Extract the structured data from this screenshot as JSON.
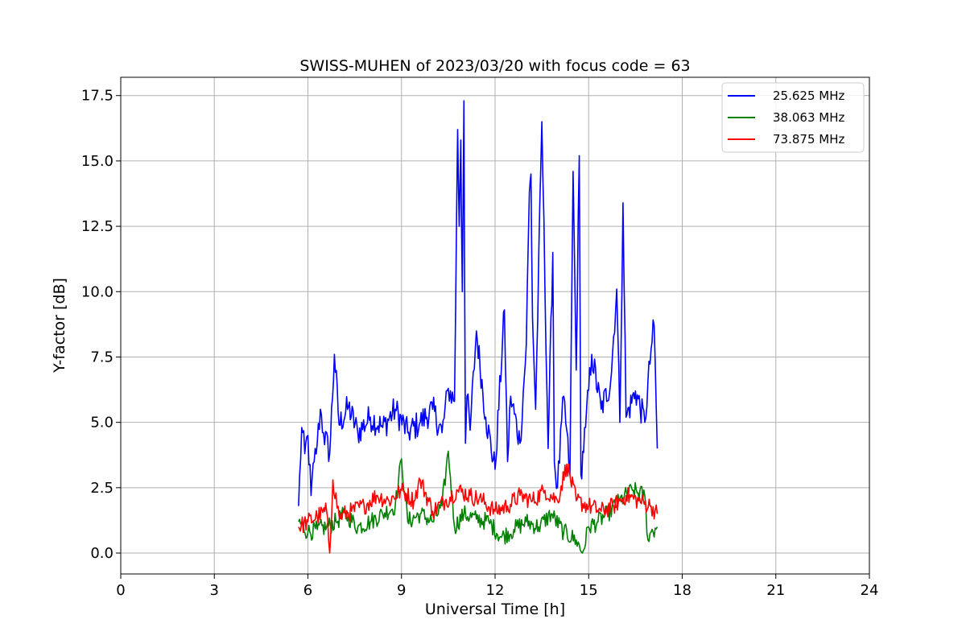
{
  "chart_data": {
    "type": "line",
    "title": "SWISS-MUHEN of 2023/03/20 with focus code = 63",
    "xlabel": "Universal Time [h]",
    "ylabel": "Y-factor [dB]",
    "xlim": [
      0,
      24
    ],
    "ylim": [
      -0.8,
      18.2
    ],
    "xticks": [
      "0",
      "3",
      "6",
      "9",
      "12",
      "15",
      "18",
      "21",
      "24"
    ],
    "yticks": [
      "0.0",
      "2.5",
      "5.0",
      "7.5",
      "10.0",
      "12.5",
      "15.0",
      "17.5"
    ],
    "grid": true,
    "legend_position": "top-right",
    "series": [
      {
        "name": "25.625 MHz",
        "color": "#0000ff",
        "x": [
          5.7,
          5.8,
          5.9,
          6.0,
          6.1,
          6.2,
          6.3,
          6.4,
          6.5,
          6.7,
          6.85,
          7.0,
          7.3,
          7.6,
          8.0,
          8.4,
          8.8,
          9.2,
          9.6,
          10.0,
          10.3,
          10.5,
          10.7,
          10.8,
          10.85,
          10.9,
          10.95,
          11.0,
          11.05,
          11.1,
          11.2,
          11.4,
          11.7,
          12.0,
          12.3,
          12.4,
          12.5,
          12.8,
          13.0,
          13.1,
          13.15,
          13.2,
          13.3,
          13.5,
          13.7,
          13.85,
          13.9,
          14.0,
          14.2,
          14.4,
          14.5,
          14.6,
          14.7,
          14.75,
          14.9,
          15.1,
          15.4,
          15.7,
          15.9,
          16.0,
          16.1,
          16.2,
          16.5,
          16.8,
          17.0,
          17.1,
          17.2
        ],
        "y": [
          1.8,
          4.8,
          3.8,
          4.5,
          2.2,
          3.5,
          4.2,
          5.5,
          4.6,
          3.8,
          7.6,
          4.9,
          5.6,
          4.6,
          5.2,
          4.8,
          5.5,
          4.6,
          5.0,
          5.5,
          4.6,
          6.3,
          5.8,
          16.2,
          12.5,
          15.8,
          10.0,
          17.3,
          4.2,
          6.0,
          4.7,
          8.5,
          5.2,
          3.2,
          9.3,
          3.5,
          6.0,
          4.2,
          8.0,
          13.8,
          14.5,
          9.0,
          5.5,
          16.5,
          4.0,
          11.5,
          3.5,
          2.5,
          6.0,
          3.0,
          14.6,
          7.0,
          15.2,
          3.0,
          4.8,
          7.6,
          5.5,
          6.5,
          10.1,
          5.0,
          13.4,
          5.2,
          6.2,
          5.0,
          7.8,
          8.7,
          4.0
        ]
      },
      {
        "name": "38.063 MHz",
        "color": "#008000",
        "x": [
          5.7,
          6.0,
          6.3,
          6.6,
          6.9,
          7.2,
          7.6,
          8.0,
          8.4,
          8.8,
          9.0,
          9.2,
          9.6,
          10.0,
          10.3,
          10.5,
          10.7,
          11.0,
          11.4,
          11.8,
          12.2,
          12.6,
          13.0,
          13.4,
          13.8,
          14.2,
          14.6,
          14.8,
          15.0,
          15.3,
          15.6,
          16.0,
          16.4,
          16.8,
          16.9,
          17.0,
          17.2
        ],
        "y": [
          1.2,
          0.8,
          0.9,
          1.0,
          1.2,
          1.5,
          1.0,
          1.2,
          1.5,
          1.8,
          3.6,
          1.2,
          1.5,
          1.2,
          1.8,
          3.9,
          1.0,
          1.5,
          1.3,
          1.2,
          0.6,
          0.9,
          1.2,
          1.0,
          1.5,
          0.8,
          0.5,
          0.0,
          1.0,
          1.2,
          1.5,
          2.0,
          2.4,
          2.2,
          0.5,
          0.8,
          1.0
        ]
      },
      {
        "name": "73.875 MHz",
        "color": "#ff0000",
        "x": [
          5.7,
          6.0,
          6.3,
          6.6,
          6.7,
          6.8,
          7.0,
          7.4,
          7.8,
          8.2,
          8.6,
          9.0,
          9.4,
          9.6,
          10.0,
          10.4,
          10.8,
          11.2,
          11.6,
          12.0,
          12.4,
          12.8,
          13.2,
          13.6,
          14.0,
          14.3,
          14.6,
          15.0,
          15.4,
          15.8,
          16.2,
          16.6,
          17.0,
          17.2
        ],
        "y": [
          1.0,
          1.2,
          1.4,
          1.6,
          0.0,
          2.8,
          1.4,
          1.6,
          1.8,
          2.2,
          2.0,
          2.4,
          2.0,
          2.8,
          1.6,
          2.0,
          2.4,
          2.2,
          2.0,
          1.6,
          1.8,
          2.2,
          2.0,
          2.4,
          2.0,
          3.4,
          2.0,
          1.8,
          1.6,
          1.8,
          2.2,
          2.0,
          1.8,
          1.5
        ]
      }
    ]
  }
}
